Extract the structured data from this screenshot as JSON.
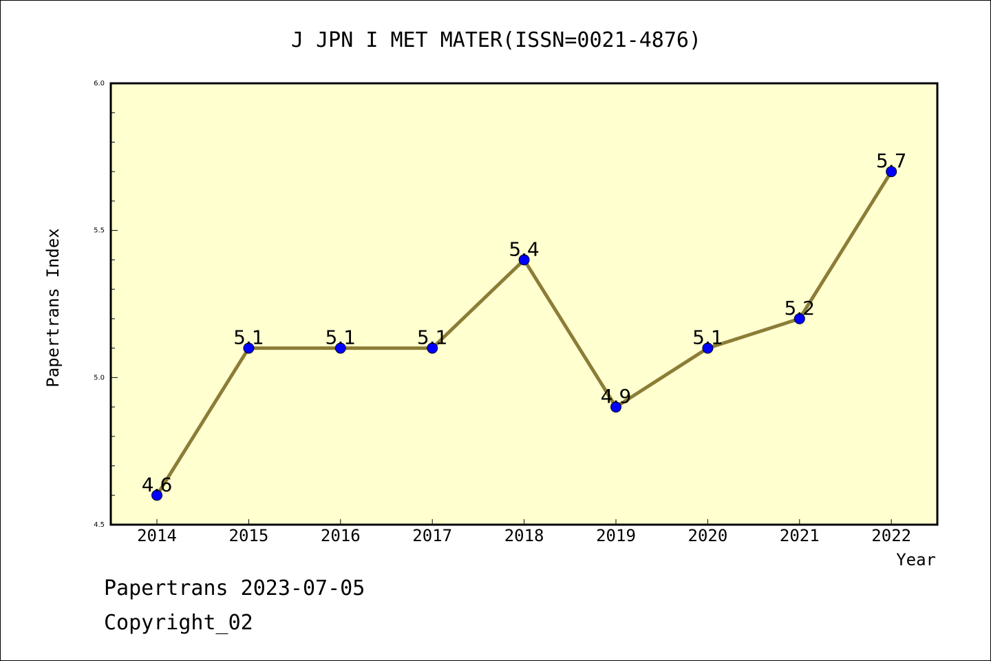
{
  "chart_data": {
    "type": "line",
    "title": "J JPN I MET MATER(ISSN=0021-4876)",
    "xlabel": "Year",
    "ylabel": "Papertrans Index",
    "categories": [
      "2014",
      "2015",
      "2016",
      "2017",
      "2018",
      "2019",
      "2020",
      "2021",
      "2022"
    ],
    "series": [
      {
        "values": [
          4.6,
          5.1,
          5.1,
          5.1,
          5.4,
          4.9,
          5.1,
          5.2,
          5.7
        ],
        "data_labels": [
          "4.6",
          "5.1",
          "5.1",
          "5.1",
          "5.4",
          "4.9",
          "5.1",
          "5.2",
          "5.7"
        ]
      }
    ],
    "ylim": [
      4.5,
      6.0
    ],
    "yticks": [
      "4.5",
      "5.0",
      "5.5",
      "6.0"
    ],
    "grid": false,
    "colors": {
      "line": "#8b7d36",
      "marker": "#0000ff",
      "plot_background": "#ffffd0"
    }
  },
  "footer": {
    "line1": "Papertrans 2023-07-05",
    "line2": "Copyright_02"
  }
}
